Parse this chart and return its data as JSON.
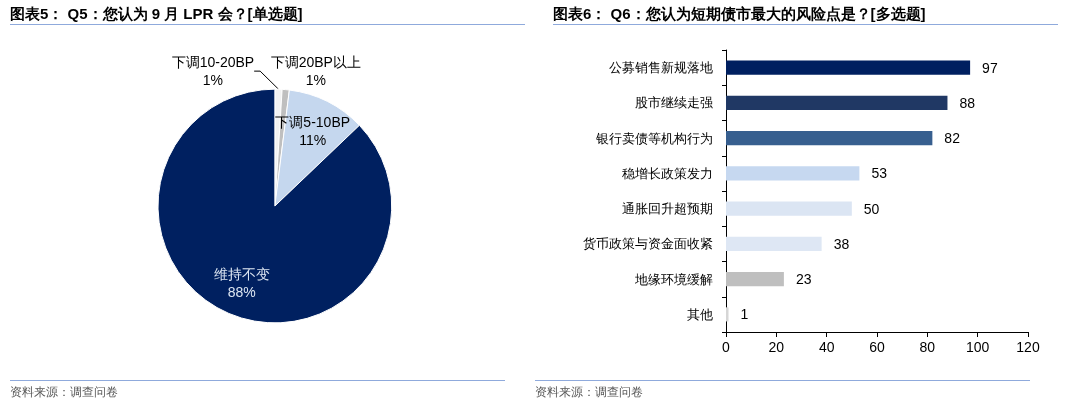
{
  "chart_data": [
    {
      "type": "pie",
      "title": "图表5： Q5：您认为 9 月 LPR 会？[单选题]",
      "categories": [
        "下调10-20BP",
        "下调20BP以上",
        "下调5-10BP",
        "维持不变"
      ],
      "values": [
        1,
        1,
        11,
        88
      ],
      "value_labels": [
        "1%",
        "1%",
        "11%",
        "88%"
      ],
      "colors": [
        "#f2f2f2",
        "#bfbfbf",
        "#c5d7ee",
        "#002060"
      ],
      "annotations": [
        "资料来源：调查问卷"
      ]
    },
    {
      "type": "bar",
      "orientation": "horizontal",
      "title": "图表6： Q6：您认为短期债市最大的风险点是？[多选题]",
      "categories": [
        "公募销售新规落地",
        "股市继续走强",
        "银行卖债等机构行为",
        "稳增长政策发力",
        "通胀回升超预期",
        "货币政策与资金面收紧",
        "地缘环境缓解",
        "其他"
      ],
      "values": [
        97,
        88,
        82,
        53,
        50,
        38,
        23,
        1
      ],
      "colors": [
        "#002060",
        "#203864",
        "#375f8f",
        "#c6d8f0",
        "#dbe5f3",
        "#dee7f4",
        "#bfbfbf",
        "#d6d6d6"
      ],
      "xlim": [
        0,
        120
      ],
      "xticks": [
        0,
        20,
        40,
        60,
        80,
        100,
        120
      ],
      "data_labels": true,
      "grid": false,
      "annotations": [
        "资料来源：调查问卷"
      ]
    }
  ]
}
